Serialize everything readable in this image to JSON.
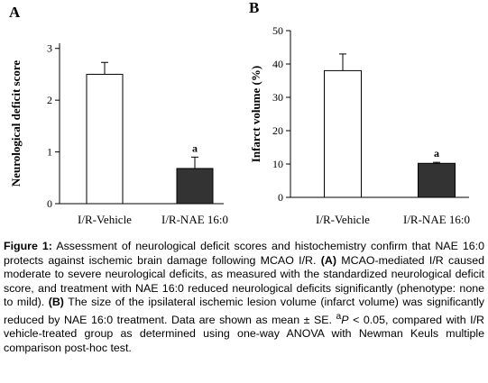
{
  "chart_data": [
    {
      "type": "bar",
      "panel_label": "A",
      "categories": [
        "I/R-Vehicle",
        "I/R-NAE 16:0"
      ],
      "values": [
        2.5,
        0.68
      ],
      "errors": [
        0.23,
        0.22
      ],
      "annotations": [
        "",
        "a"
      ],
      "bar_colors": [
        "#ffffff",
        "#333333"
      ],
      "ylabel": "Neurological deficit score",
      "yticks": [
        0,
        1,
        2,
        3
      ],
      "ylim": [
        0,
        3.1
      ],
      "grid": false
    },
    {
      "type": "bar",
      "panel_label": "B",
      "categories": [
        "I/R-Vehicle",
        "I/R-NAE 16:0"
      ],
      "values": [
        38,
        10.2
      ],
      "errors": [
        5,
        0.3
      ],
      "annotations": [
        "",
        "a"
      ],
      "bar_colors": [
        "#ffffff",
        "#333333"
      ],
      "ylabel": "Infarct volume (%)",
      "yticks": [
        0,
        10,
        20,
        30,
        40,
        50
      ],
      "ylim": [
        0,
        50
      ],
      "grid": false
    }
  ],
  "caption": {
    "label": "Figure 1:",
    "text": "Assessment of neurological deficit scores and histochemistry confirm that NAE 16:0 protects against ischemic brain damage following MCAO I/R.",
    "part_a_label": "(A)",
    "part_a_text": "MCAO-mediated I/R caused moderate to severe neurological deficits, as measured with the standardized neurological deficit score, and treatment with NAE 16:0 reduced neurological deficits significantly (phenotype: none to mild).",
    "part_b_label": "(B)",
    "part_b_text": "The size of the ipsilateral ischemic lesion volume (infarct volume) was significantly reduced by NAE 16:0 treatment. Data are shown as mean ± SE.",
    "footnote_marker": "a",
    "footnote_text": "P < 0.05, compared with I/R vehicle-treated group as determined using one-way ANOVA with Newman Keuls multiple comparison post-hoc test."
  }
}
